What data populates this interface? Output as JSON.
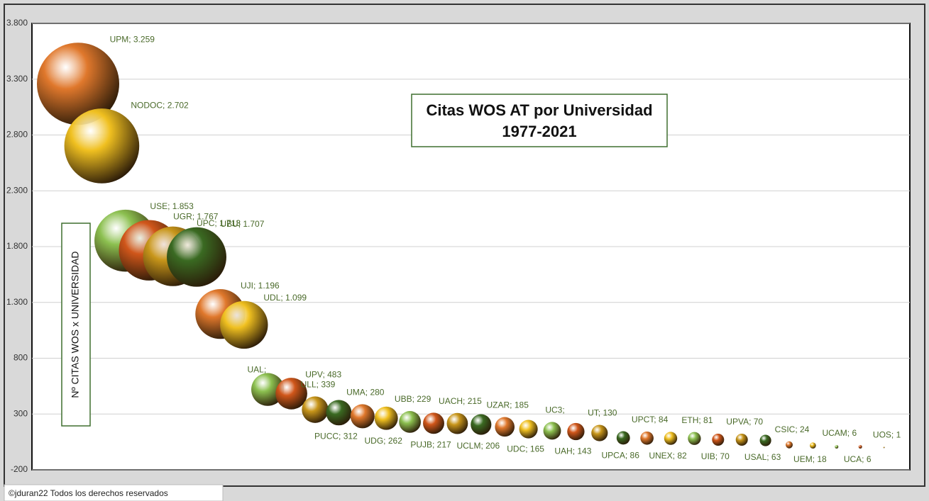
{
  "chart_data": {
    "type": "bubble",
    "title": "Citas WOS AT por Universidad",
    "subtitle": "1977-2021",
    "y_label": "Nº CITAS WOS x UNIVERSIDAD",
    "footer": "©jduran22 Todos los derechos reservados",
    "categories": [
      "UPM",
      "NODOC",
      "USE",
      "UGR",
      "UPC",
      "UBU",
      "UJI",
      "UDL",
      "UAL",
      "UPV",
      "ULL",
      "PUCC",
      "UMA",
      "UDG",
      "UBB",
      "PUJB",
      "UACH",
      "UCLM",
      "UZAR",
      "UDC",
      "UC3",
      "UAH",
      "UT",
      "UPCA",
      "UPCT",
      "UNEX",
      "ETH",
      "UIB",
      "UPVA",
      "USAL",
      "CSIC",
      "UEM",
      "UCAM",
      "UCA",
      "UOS"
    ],
    "values": [
      3259,
      2702,
      1853,
      1767,
      1713,
      1707,
      1196,
      1099,
      520,
      483,
      339,
      312,
      280,
      262,
      229,
      217,
      215,
      206,
      185,
      165,
      150,
      143,
      130,
      86,
      84,
      82,
      81,
      70,
      70,
      63,
      24,
      18,
      6,
      6,
      1
    ],
    "value_labels": [
      "UPM; 3.259",
      "NODOC; 2.702",
      "USE; 1.853",
      "UGR; 1.767",
      "UPC; 1.713",
      "UBU; 1.707",
      "UJI; 1.196",
      "UDL; 1.099",
      "UAL;",
      "UPV; 483",
      "ULL; 339",
      "PUCC; 312",
      "UMA; 280",
      "UDG; 262",
      "UBB; 229",
      "PUJB; 217",
      "UACH; 215",
      "UCLM; 206",
      "UZAR; 185",
      "UDC; 165",
      "UC3;",
      "UAH; 143",
      "UT; 130",
      "UPCA; 86",
      "UPCT; 84",
      "UNEX; 82",
      "ETH; 81",
      "UIB; 70",
      "UPVA; 70",
      "USAL; 63",
      "CSIC; 24",
      "UEM; 18",
      "UCAM; 6",
      "UCA; 6",
      "UOS; 1"
    ],
    "colors": [
      "#e0782c",
      "#f0c020",
      "#8cc050",
      "#d0561a",
      "#c8961a",
      "#3a6a22"
    ],
    "ylim": [
      -200,
      3800
    ],
    "yticks": [
      -200,
      300,
      800,
      {
        "value": 1300,
        "label": "1.300"
      },
      {
        "value": 1800,
        "label": "1.800"
      },
      {
        "value": 2300,
        "label": "2.300"
      },
      {
        "value": 2800,
        "label": "2.800"
      },
      {
        "value": 3300,
        "label": "3.300"
      },
      {
        "value": 3800,
        "label": "3.800"
      }
    ],
    "grid": true
  }
}
